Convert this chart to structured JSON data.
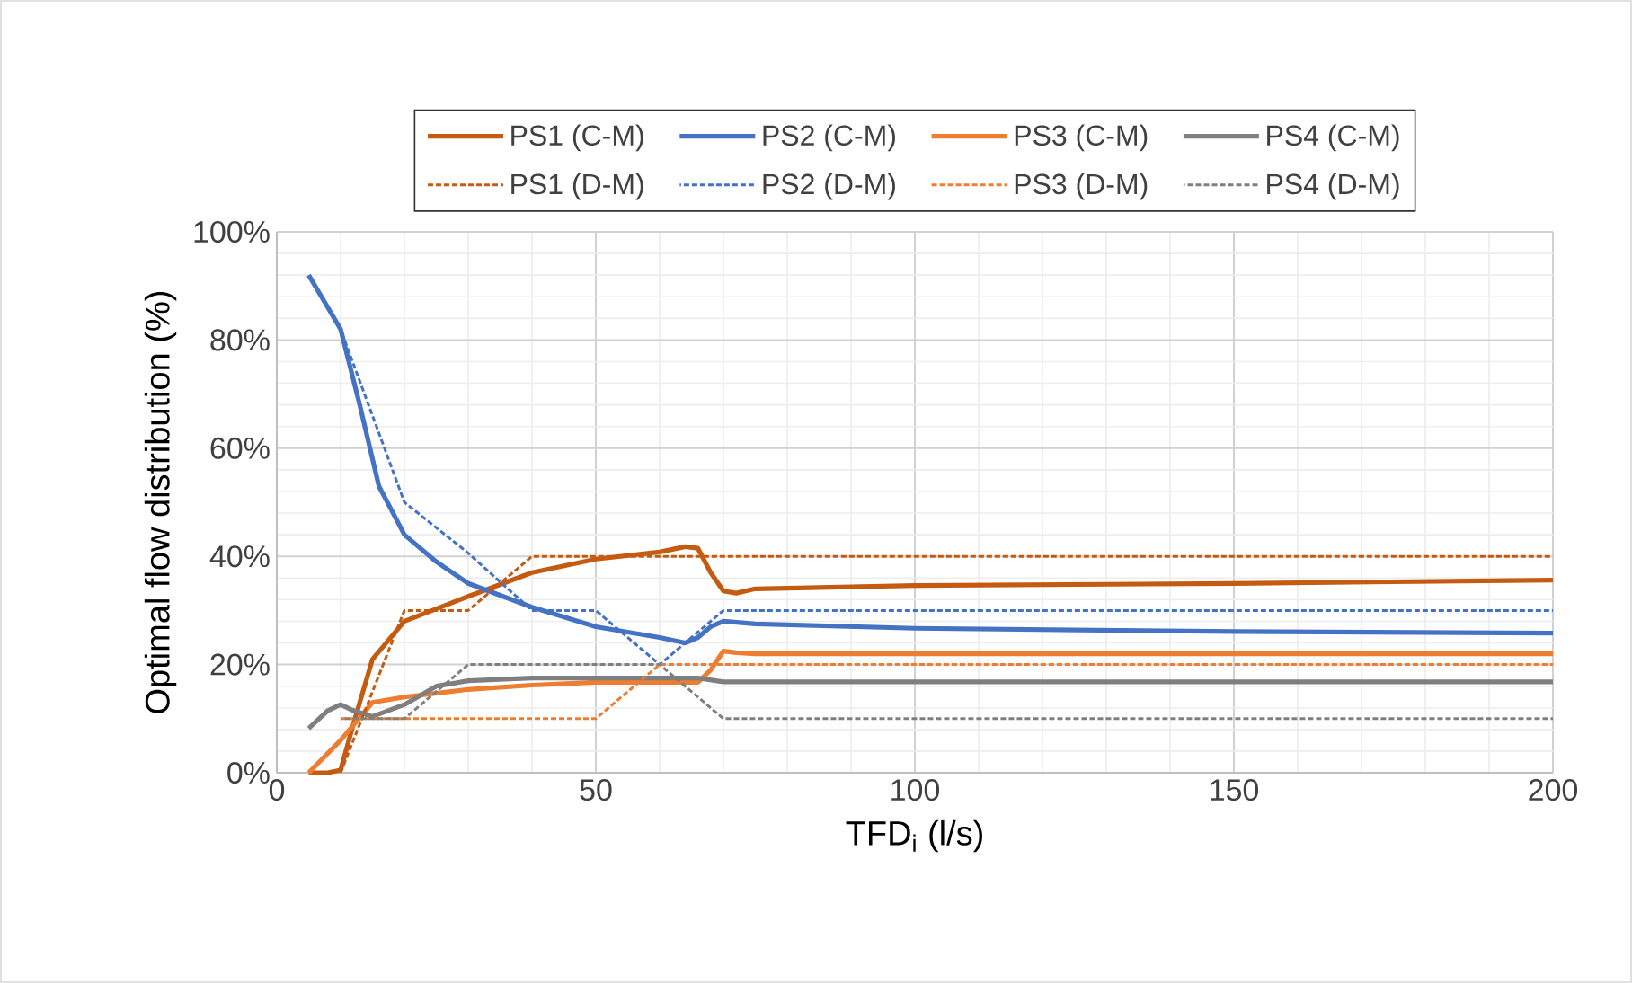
{
  "chart_data": {
    "type": "line",
    "xlabel": "TFD$_{i}$ (l/s)",
    "ylabel": "Optimal flow distribution (%)",
    "xlim": [
      0,
      200
    ],
    "xticks": [
      0,
      50,
      100,
      150,
      200
    ],
    "ylim": [
      0,
      100
    ],
    "yticks": [
      {
        "value": 0,
        "label": "0%"
      },
      {
        "value": 20,
        "label": "20%"
      },
      {
        "value": 40,
        "label": "40%"
      },
      {
        "value": 60,
        "label": "60%"
      },
      {
        "value": 80,
        "label": "80%"
      },
      {
        "value": 100,
        "label": "100%"
      }
    ],
    "grid": true,
    "legend": "top",
    "series": [
      {
        "name": "PS1 (C-M)",
        "color": "#c55a11",
        "line_style": "solid",
        "x": [
          5,
          8,
          10,
          12,
          15,
          20,
          25,
          30,
          40,
          50,
          60,
          64,
          66,
          68,
          70,
          72,
          75,
          100,
          150,
          200
        ],
        "values": [
          0,
          0,
          0.5,
          9,
          21,
          28,
          30.3,
          32.6,
          37,
          39.5,
          40.8,
          41.8,
          41.5,
          37,
          33.6,
          33.2,
          34,
          34.6,
          35,
          35.6
        ]
      },
      {
        "name": "PS2 (C-M)",
        "color": "#4472c4",
        "line_style": "solid",
        "x": [
          5,
          8,
          10,
          13,
          16,
          20,
          25,
          30,
          40,
          50,
          60,
          64,
          66,
          68,
          70,
          75,
          100,
          150,
          200
        ],
        "values": [
          92,
          86,
          82,
          68,
          53,
          44,
          39,
          35,
          30.6,
          27,
          25,
          24,
          25,
          27,
          28,
          27.5,
          26.7,
          26.1,
          25.8
        ]
      },
      {
        "name": "PS3 (C-M)",
        "color": "#ed7d31",
        "line_style": "solid",
        "x": [
          5,
          10,
          15,
          20,
          30,
          40,
          50,
          60,
          66,
          68,
          70,
          72,
          75,
          100,
          150,
          200
        ],
        "values": [
          0,
          6,
          13,
          14,
          15.4,
          16.2,
          16.7,
          16.7,
          16.7,
          19,
          22.5,
          22.2,
          22,
          22,
          22,
          22
        ]
      },
      {
        "name": "PS4 (C-M)",
        "color": "#7f7f7f",
        "line_style": "solid",
        "x": [
          5,
          8,
          10,
          12,
          15,
          20,
          25,
          30,
          40,
          50,
          60,
          66,
          70,
          75,
          100,
          150,
          200
        ],
        "values": [
          8.2,
          11.5,
          12.6,
          11.5,
          10.4,
          12.6,
          16,
          17,
          17.5,
          17.5,
          17.5,
          17.5,
          16.8,
          16.8,
          16.8,
          16.8,
          16.8
        ]
      },
      {
        "name": "PS1 (D-M)",
        "color": "#c55a11",
        "line_style": "dashed",
        "x": [
          10,
          20,
          30,
          40,
          50,
          60,
          70,
          100,
          150,
          200
        ],
        "values": [
          0,
          30,
          30,
          40,
          40,
          40,
          40,
          40,
          40,
          40
        ]
      },
      {
        "name": "PS2 (D-M)",
        "color": "#4472c4",
        "line_style": "dashed",
        "x": [
          10,
          20,
          30,
          40,
          50,
          60,
          70,
          100,
          150,
          200
        ],
        "values": [
          82,
          50,
          40.6,
          30,
          30,
          20,
          30,
          30,
          30,
          30
        ]
      },
      {
        "name": "PS3 (D-M)",
        "color": "#ed7d31",
        "line_style": "dashed",
        "x": [
          10,
          20,
          30,
          40,
          50,
          60,
          70,
          100,
          150,
          200
        ],
        "values": [
          10,
          10,
          10,
          10,
          10,
          20,
          20,
          20,
          20,
          20
        ]
      },
      {
        "name": "PS4 (D-M)",
        "color": "#7f7f7f",
        "line_style": "dashed",
        "x": [
          10,
          20,
          30,
          40,
          50,
          60,
          70,
          100,
          150,
          200
        ],
        "values": [
          10,
          10,
          20,
          20,
          20,
          20,
          10,
          10,
          10,
          10
        ]
      }
    ]
  }
}
